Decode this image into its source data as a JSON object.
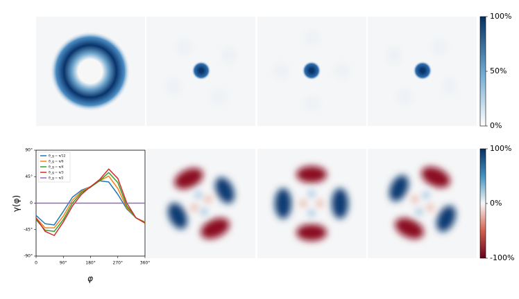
{
  "chart_data": {
    "type": "line",
    "xlabel": "φ",
    "ylabel": "γ(φ)",
    "xlim": [
      0,
      360
    ],
    "xticks": [
      0,
      {
        "value": 90,
        "label": "90°"
      },
      {
        "value": 180,
        "label": "180°"
      },
      {
        "value": 270,
        "label": "270°"
      },
      {
        "value": 360,
        "label": "360°"
      }
    ],
    "ylim": [
      -90,
      90
    ],
    "yticks": [
      {
        "value": -90,
        "label": "-90°"
      },
      {
        "value": -45,
        "label": "-45°"
      },
      0,
      {
        "value": 45,
        "label": "45°"
      },
      {
        "value": 90,
        "label": "90°"
      }
    ],
    "x": [
      0,
      30,
      60,
      90,
      120,
      150,
      180,
      210,
      240,
      270,
      300,
      330,
      360
    ],
    "legend": "upper left",
    "series": [
      {
        "name": "θ_g = π/12",
        "color": "#1f77b4",
        "values": [
          -21,
          -35,
          -37,
          -14,
          10,
          22,
          28,
          38,
          36,
          15,
          -10,
          -25,
          -33
        ]
      },
      {
        "name": "θ_g = π/6",
        "color": "#ff7f0e",
        "values": [
          -25,
          -42,
          -42,
          -22,
          5,
          20,
          28,
          38,
          46,
          25,
          -8,
          -25,
          -32
        ]
      },
      {
        "name": "θ_g = π/4",
        "color": "#2ca02c",
        "values": [
          -28,
          -46,
          -48,
          -28,
          0,
          18,
          27,
          38,
          52,
          35,
          -5,
          -25,
          -33
        ]
      },
      {
        "name": "θ_g = π/3",
        "color": "#d62728",
        "values": [
          -25,
          -48,
          -55,
          -32,
          -5,
          15,
          28,
          40,
          58,
          42,
          0,
          -25,
          -34
        ]
      },
      {
        "name": "θ_g = π/2",
        "color": "#9467bd",
        "values": [
          0,
          0,
          0,
          0,
          0,
          0,
          0,
          0,
          0,
          0,
          0,
          0,
          0
        ]
      }
    ],
    "colorbars": [
      {
        "clim": [
          0,
          100
        ],
        "ticks": [
          {
            "value": 0,
            "label": "0%"
          },
          {
            "value": 50,
            "label": "50%"
          },
          {
            "value": 100,
            "label": "100%"
          }
        ]
      },
      {
        "clim": [
          -100,
          100
        ],
        "ticks": [
          {
            "value": -100,
            "label": "-100%"
          },
          {
            "value": 0,
            "label": "0%"
          },
          {
            "value": 100,
            "label": "100%"
          }
        ]
      }
    ]
  }
}
